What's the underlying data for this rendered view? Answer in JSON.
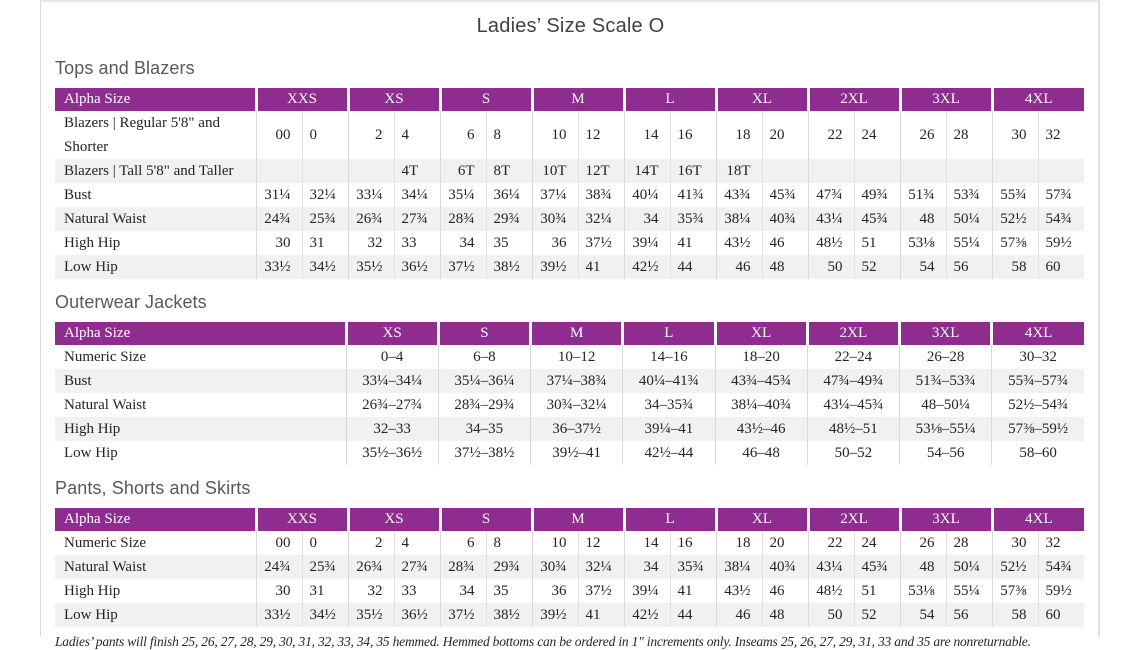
{
  "page": {
    "title": "Ladies’ Size Scale O",
    "footnote": "Ladies’ pants will finish 25, 26, 27, 28, 29, 30, 31, 32, 33, 34, 35 hemmed. Hemmed bottoms can be ordered in 1\" increments only. Inseams 25, 26, 27, 29, 31, 33 and 35 are nonreturnable."
  },
  "colors": {
    "header_purple": "#8e2c8f",
    "row_stripe": "#f1f1f1",
    "grid_line": "#d9d9d9"
  },
  "tables": [
    {
      "section_title": "Tops and Blazers",
      "corner_label": "Alpha Size",
      "paired": true,
      "sizes": [
        "XXS",
        "XS",
        "S",
        "M",
        "L",
        "XL",
        "2XL",
        "3XL",
        "4XL"
      ],
      "rows": [
        {
          "label": "Blazers | Regular 5'8\" and Shorter",
          "values": [
            "00",
            "0",
            "2",
            "4",
            "6",
            "8",
            "10",
            "12",
            "14",
            "16",
            "18",
            "20",
            "22",
            "24",
            "26",
            "28",
            "30",
            "32"
          ]
        },
        {
          "label": "Blazers | Tall 5'8\" and Taller",
          "values": [
            "",
            "",
            "",
            "4T",
            "6T",
            "8T",
            "10T",
            "12T",
            "14T",
            "16T",
            "18T",
            "",
            "",
            "",
            "",
            "",
            "",
            ""
          ]
        },
        {
          "label": "Bust",
          "values": [
            "31¼",
            "32¼",
            "33¼",
            "34¼",
            "35¼",
            "36¼",
            "37¼",
            "38¾",
            "40¼",
            "41¾",
            "43¾",
            "45¾",
            "47¾",
            "49¾",
            "51¾",
            "53¾",
            "55¾",
            "57¾"
          ]
        },
        {
          "label": "Natural Waist",
          "values": [
            "24¾",
            "25¾",
            "26¾",
            "27¾",
            "28¾",
            "29¾",
            "30¾",
            "32¼",
            "34",
            "35¾",
            "38¼",
            "40¾",
            "43¼",
            "45¾",
            "48",
            "50¼",
            "52½",
            "54¾"
          ]
        },
        {
          "label": "High Hip",
          "values": [
            "30",
            "31",
            "32",
            "33",
            "34",
            "35",
            "36",
            "37½",
            "39¼",
            "41",
            "43½",
            "46",
            "48½",
            "51",
            "53⅛",
            "55¼",
            "57⅜",
            "59½"
          ]
        },
        {
          "label": "Low Hip",
          "values": [
            "33½",
            "34½",
            "35½",
            "36½",
            "37½",
            "38½",
            "39½",
            "41",
            "42½",
            "44",
            "46",
            "48",
            "50",
            "52",
            "54",
            "56",
            "58",
            "60"
          ]
        }
      ]
    },
    {
      "section_title": "Outerwear Jackets",
      "corner_label": "Alpha Size",
      "paired": false,
      "sizes": [
        "XS",
        "S",
        "M",
        "L",
        "XL",
        "2XL",
        "3XL",
        "4XL"
      ],
      "rows": [
        {
          "label": "Numeric Size",
          "values": [
            "0–4",
            "6–8",
            "10–12",
            "14–16",
            "18–20",
            "22–24",
            "26–28",
            "30–32"
          ]
        },
        {
          "label": "Bust",
          "values": [
            "33¼–34¼",
            "35¼–36¼",
            "37¼–38¾",
            "40¼–41¾",
            "43¾–45¾",
            "47¾–49¾",
            "51¾–53¾",
            "55¾–57¾"
          ]
        },
        {
          "label": "Natural Waist",
          "values": [
            "26¾–27¾",
            "28¾–29¾",
            "30¾–32¼",
            "34–35¾",
            "38¼–40¾",
            "43¼–45¾",
            "48–50¼",
            "52½–54¾"
          ]
        },
        {
          "label": "High Hip",
          "values": [
            "32–33",
            "34–35",
            "36–37½",
            "39¼–41",
            "43½–46",
            "48½–51",
            "53⅛–55¼",
            "57⅜–59½"
          ]
        },
        {
          "label": "Low Hip",
          "values": [
            "35½–36½",
            "37½–38½",
            "39½–41",
            "42½–44",
            "46–48",
            "50–52",
            "54–56",
            "58–60"
          ]
        }
      ]
    },
    {
      "section_title": "Pants, Shorts and Skirts",
      "corner_label": "Alpha Size",
      "paired": true,
      "sizes": [
        "XXS",
        "XS",
        "S",
        "M",
        "L",
        "XL",
        "2XL",
        "3XL",
        "4XL"
      ],
      "rows": [
        {
          "label": "Numeric Size",
          "values": [
            "00",
            "0",
            "2",
            "4",
            "6",
            "8",
            "10",
            "12",
            "14",
            "16",
            "18",
            "20",
            "22",
            "24",
            "26",
            "28",
            "30",
            "32"
          ]
        },
        {
          "label": "Natural Waist",
          "values": [
            "24¾",
            "25¾",
            "26¾",
            "27¾",
            "28¾",
            "29¾",
            "30¾",
            "32¼",
            "34",
            "35¾",
            "38¼",
            "40¾",
            "43¼",
            "45¾",
            "48",
            "50¼",
            "52½",
            "54¾"
          ]
        },
        {
          "label": "High Hip",
          "values": [
            "30",
            "31",
            "32",
            "33",
            "34",
            "35",
            "36",
            "37½",
            "39¼",
            "41",
            "43½",
            "46",
            "48½",
            "51",
            "53⅛",
            "55¼",
            "57⅜",
            "59½"
          ]
        },
        {
          "label": "Low Hip",
          "values": [
            "33½",
            "34½",
            "35½",
            "36½",
            "37½",
            "38½",
            "39½",
            "41",
            "42½",
            "44",
            "46",
            "48",
            "50",
            "52",
            "54",
            "56",
            "58",
            "60"
          ]
        }
      ]
    }
  ]
}
